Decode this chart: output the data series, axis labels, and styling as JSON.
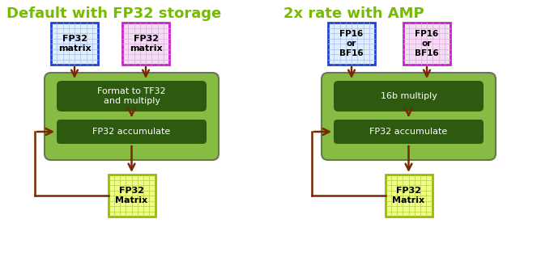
{
  "title_left": "Default with FP32 storage",
  "title_right": "2x rate with AMP",
  "title_color": "#77bb00",
  "title_fontsize": 13,
  "bg_color": "#ffffff",
  "left_matrix1_text": "FP32\nmatrix",
  "left_matrix2_text": "FP32\nmatrix",
  "left_box1_text": "Format to TF32\nand multiply",
  "left_box2_text": "FP32 accumulate",
  "left_output_text": "FP32\nMatrix",
  "right_matrix1_text": "FP16\nor\nBF16",
  "right_matrix2_text": "FP16\nor\nBF16",
  "right_box1_text": "16b multiply",
  "right_box2_text": "FP32 accumulate",
  "right_output_text": "FP32\nMatrix",
  "matrix1_border_color": "#2244cc",
  "matrix1_fill_color": "#ddeeff",
  "matrix2_border_color": "#cc22cc",
  "matrix2_fill_color": "#f5ddf5",
  "output_border_color": "#99bb00",
  "output_fill_color": "#eeff88",
  "outer_box_fill": "#88bb44",
  "outer_box_edge": "#667755",
  "inner_box_fill": "#2d5a0e",
  "inner_box_text_color": "#ffffff",
  "arrow_color": "#7a2800",
  "grid_color_blue": "#aabbee",
  "grid_color_purple": "#ddaadd",
  "grid_color_yellow": "#bbcc33"
}
